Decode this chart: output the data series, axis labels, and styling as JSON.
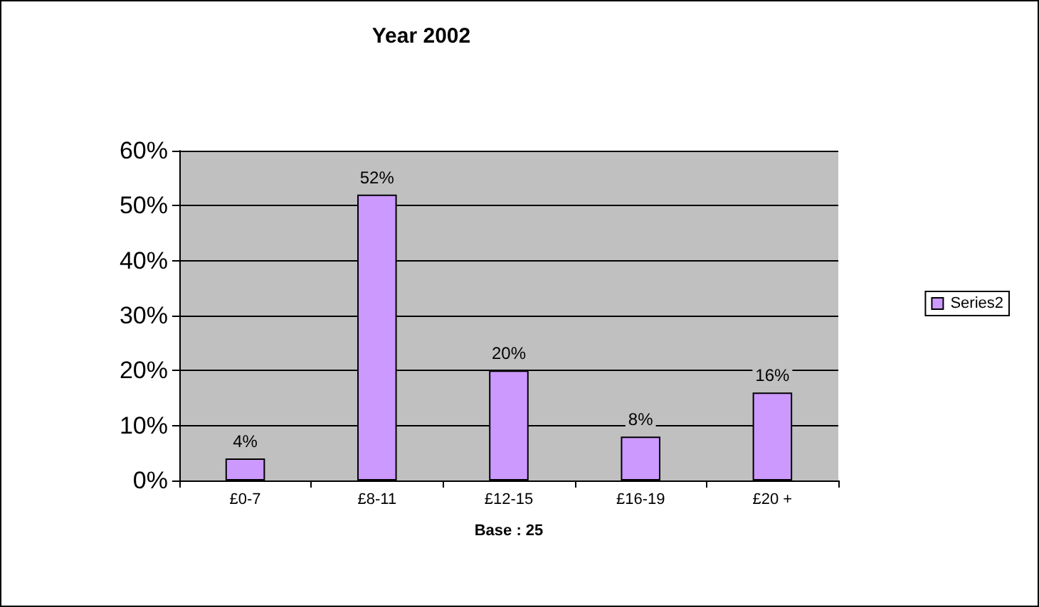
{
  "chart_data": {
    "type": "bar",
    "title": "Year 2002",
    "xlabel": "Base : 25",
    "categories": [
      "£0-7",
      "£8-11",
      "£12-15",
      "£16-19",
      "£20 +"
    ],
    "series": [
      {
        "name": "Series2",
        "color": "#cc99ff",
        "values": [
          4,
          52,
          20,
          8,
          16
        ]
      }
    ],
    "value_labels": [
      "4%",
      "52%",
      "20%",
      "8%",
      "16%"
    ],
    "ylim": [
      0,
      60
    ],
    "yticks": [
      {
        "value": 0,
        "label": "0%"
      },
      {
        "value": 10,
        "label": "10%"
      },
      {
        "value": 20,
        "label": "20%"
      },
      {
        "value": 30,
        "label": "30%"
      },
      {
        "value": 40,
        "label": "40%"
      },
      {
        "value": 50,
        "label": "50%"
      },
      {
        "value": 60,
        "label": "60%"
      }
    ],
    "grid": "y",
    "legend": "right"
  }
}
